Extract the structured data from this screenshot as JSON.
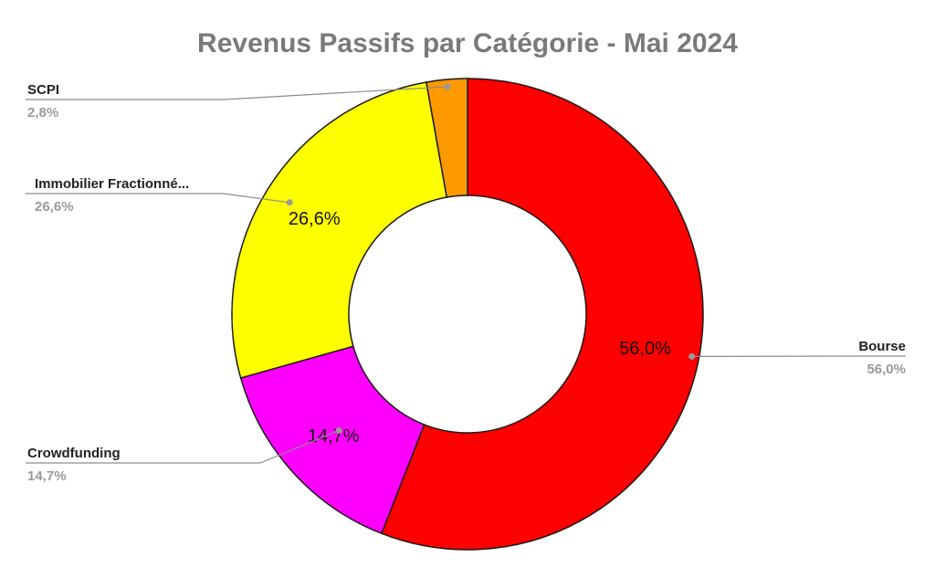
{
  "chart_data": {
    "type": "pie",
    "variant": "donut",
    "title": "Revenus Passifs par Catégorie - Mai 2024",
    "series": [
      {
        "name": "",
        "slices": [
          {
            "label": "Bourse",
            "value": 56.0,
            "display": "56,0%",
            "color": "#ff0000"
          },
          {
            "label": "Crowdfunding",
            "value": 14.7,
            "display": "14,7%",
            "color": "#ff00ff"
          },
          {
            "label": "Immobilier Fractionné...",
            "value": 26.6,
            "display": "26,6%",
            "color": "#ffff00"
          },
          {
            "label": "SCPI",
            "value": 2.8,
            "display": "2,8%",
            "color": "#ff9900"
          }
        ]
      }
    ],
    "legend": "none"
  }
}
